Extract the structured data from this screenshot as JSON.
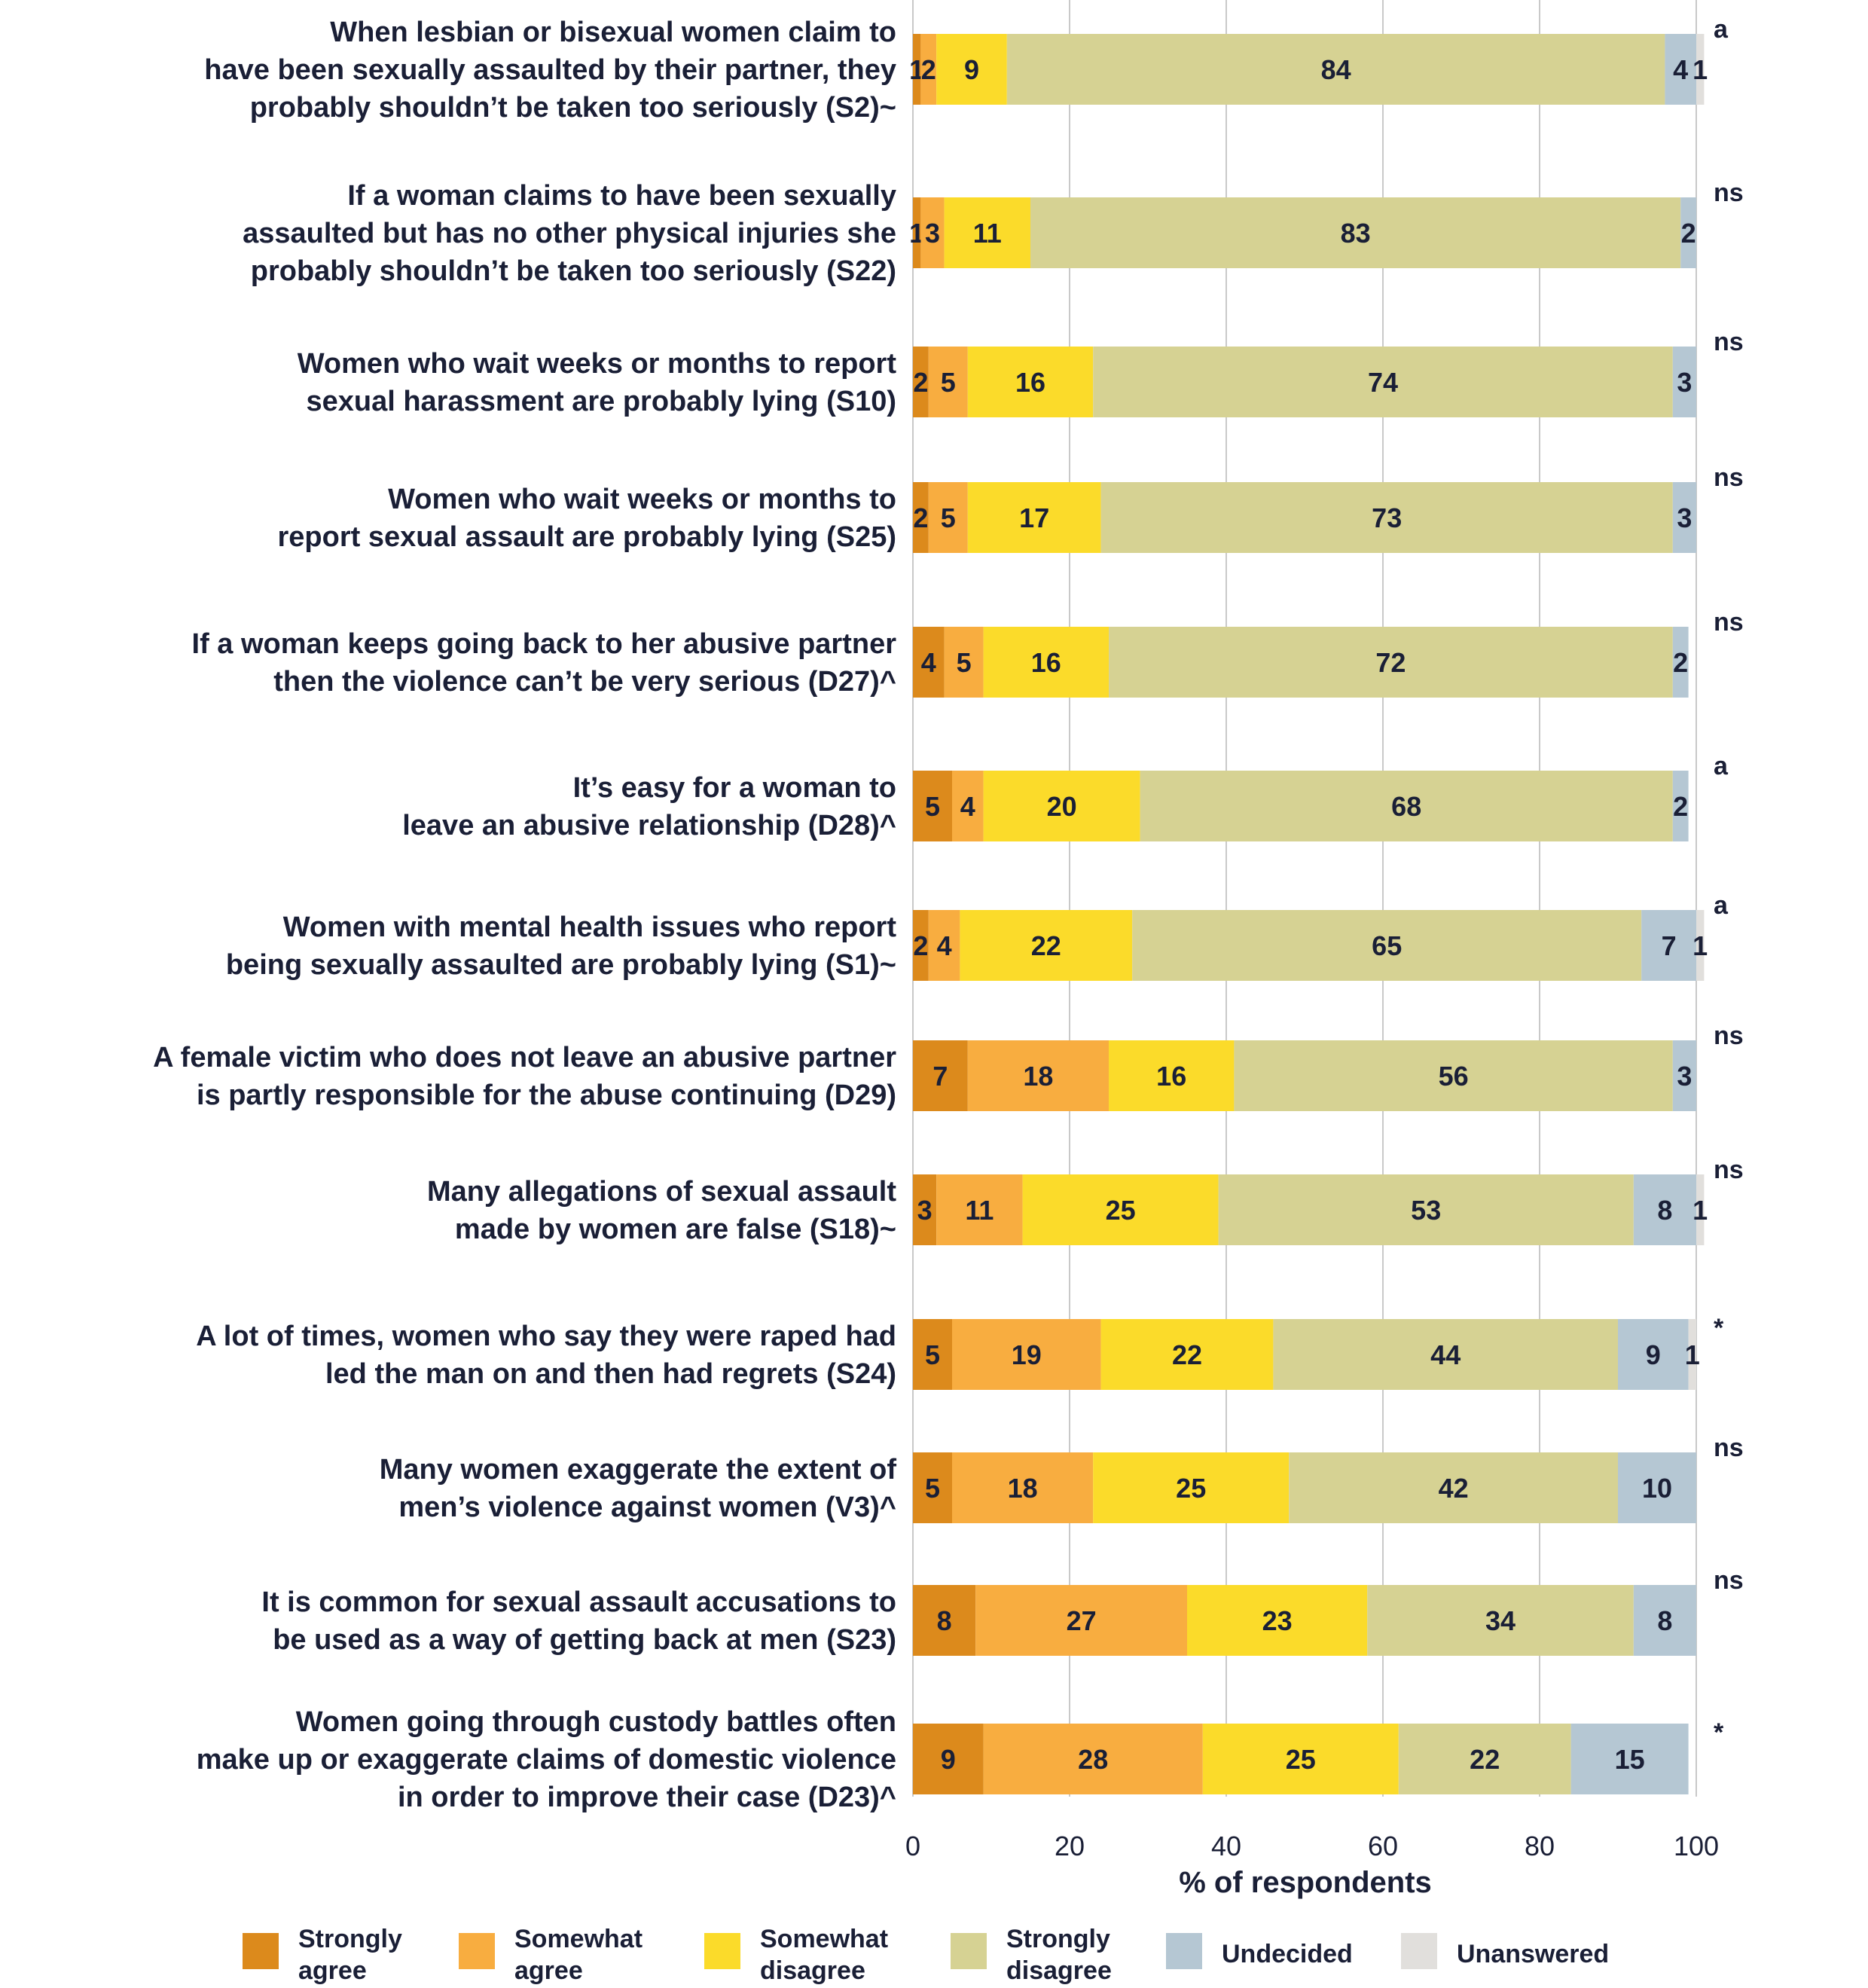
{
  "chart_data": {
    "type": "bar",
    "orientation": "horizontal",
    "stacked": true,
    "xlabel": "% of respondents",
    "xlim": [
      0,
      100
    ],
    "xticks": [
      0,
      20,
      40,
      60,
      80,
      100
    ],
    "grid": true,
    "legend_position": "bottom",
    "categories": [
      {
        "lines": [
          "When lesbian or bisexual women claim to",
          "have been sexually assaulted by their partner, they",
          "probably shouldn’t be taken too seriously (S2)~"
        ],
        "sig": "a"
      },
      {
        "lines": [
          "If a woman claims to have been sexually",
          "assaulted but has no other physical injuries she",
          "probably shouldn’t be taken too seriously (S22)"
        ],
        "sig": "ns"
      },
      {
        "lines": [
          "Women who wait weeks or months to report",
          "sexual harassment are probably lying (S10)"
        ],
        "sig": "ns"
      },
      {
        "lines": [
          "Women who wait weeks or months to",
          "report sexual assault are probably lying (S25)"
        ],
        "sig": "ns"
      },
      {
        "lines": [
          "If a woman keeps going back to her abusive partner",
          "then the violence can’t be very serious  (D27)^"
        ],
        "sig": "ns"
      },
      {
        "lines": [
          "It’s easy for a woman to",
          "leave an abusive relationship (D28)^"
        ],
        "sig": "a"
      },
      {
        "lines": [
          "Women with mental health issues who report",
          "being sexually assaulted are probably lying (S1)~"
        ],
        "sig": "a"
      },
      {
        "lines": [
          "A female victim who does not leave an abusive partner",
          "is partly responsible for the abuse continuing (D29)"
        ],
        "sig": "ns"
      },
      {
        "lines": [
          "Many allegations of sexual assault",
          "made by women are false (S18)~"
        ],
        "sig": "ns"
      },
      {
        "lines": [
          "A lot of times, women who say they were raped had",
          "led the man on and then had regrets (S24)"
        ],
        "sig": "*"
      },
      {
        "lines": [
          "Many women exaggerate the extent of",
          "men’s violence against women (V3)^"
        ],
        "sig": "ns"
      },
      {
        "lines": [
          "It is common for sexual assault accusations to",
          "be used as a way of getting back at men (S23)"
        ],
        "sig": "ns"
      },
      {
        "lines": [
          "Women going through custody battles often",
          "make up or exaggerate claims of domestic violence",
          "in order to improve their case (D23)^"
        ],
        "sig": "*"
      }
    ],
    "series": [
      {
        "name": "Strongly agree",
        "color": "#dc8a1c",
        "values": [
          1,
          1,
          2,
          2,
          4,
          5,
          2,
          7,
          3,
          5,
          5,
          8,
          9
        ]
      },
      {
        "name": "Somewhat agree",
        "color": "#f8ad40",
        "values": [
          2,
          3,
          5,
          5,
          5,
          4,
          4,
          18,
          11,
          19,
          18,
          27,
          28
        ]
      },
      {
        "name": "Somewhat disagree",
        "color": "#fbdb2a",
        "values": [
          9,
          11,
          16,
          17,
          16,
          20,
          22,
          16,
          25,
          22,
          25,
          23,
          25
        ]
      },
      {
        "name": "Strongly disagree",
        "color": "#d6d293",
        "values": [
          84,
          83,
          74,
          73,
          72,
          68,
          65,
          56,
          53,
          44,
          42,
          34,
          22
        ]
      },
      {
        "name": "Undecided",
        "color": "#b5c7d3",
        "values": [
          4,
          2,
          3,
          3,
          2,
          2,
          7,
          3,
          8,
          9,
          10,
          8,
          15
        ]
      },
      {
        "name": "Unanswered",
        "color": "#e1dfdc",
        "values": [
          1,
          0,
          0,
          0,
          0,
          0,
          1,
          0,
          1,
          1,
          0,
          0,
          0
        ]
      }
    ],
    "legend": [
      {
        "lines": [
          "Strongly",
          "agree"
        ]
      },
      {
        "lines": [
          "Somewhat",
          "agree"
        ]
      },
      {
        "lines": [
          "Somewhat",
          "disagree"
        ]
      },
      {
        "lines": [
          "Strongly",
          "disagree"
        ]
      },
      {
        "lines": [
          "Undecided"
        ]
      },
      {
        "lines": [
          "Unanswered"
        ]
      }
    ]
  }
}
